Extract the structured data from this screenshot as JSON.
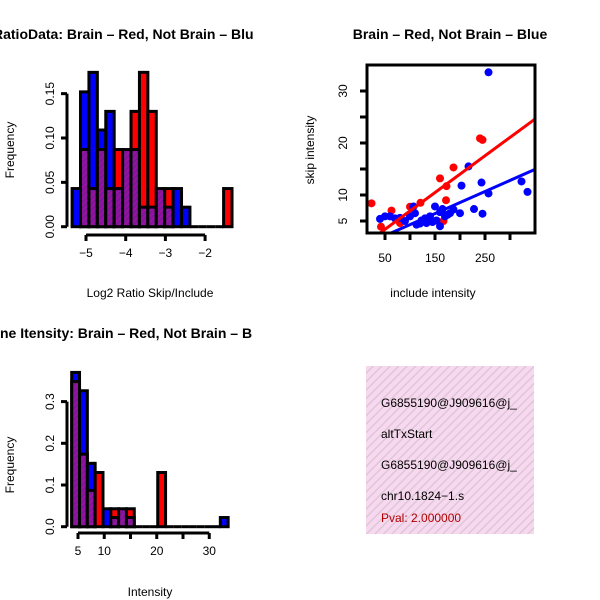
{
  "colors": {
    "red": "#ff0000",
    "blue": "#0000ff",
    "overlap": "#9a10a8",
    "note_bg": "#f8d8f0",
    "pval": "#b00000"
  },
  "chart_data": [
    {
      "type": "bar",
      "title": "RatioData: Brain – Red, Not Brain – Blu",
      "xlabel": "Log2 Ratio Skip/Include",
      "ylabel": "Frequency",
      "bin_start": -5.35,
      "bin_width": 0.212,
      "series": [
        {
          "name": "Not Brain",
          "color": "blue",
          "values": [
            0.043,
            0.152,
            0.174,
            0.109,
            0.13,
            0.043,
            0.087,
            0.087,
            0.022,
            0.022,
            0.043,
            0.022,
            0.043,
            0.022,
            0,
            0,
            0,
            0,
            0
          ]
        },
        {
          "name": "Brain",
          "color": "red",
          "values": [
            0,
            0.087,
            0.043,
            0.087,
            0.043,
            0.087,
            0.087,
            0.13,
            0.174,
            0.13,
            0.043,
            0.043,
            0,
            0,
            0,
            0,
            0,
            0,
            0.043
          ]
        }
      ],
      "xticks": [
        -5,
        -4,
        -3,
        -2
      ],
      "xtick_labels": [
        "−5",
        "−4",
        "−3",
        "−2"
      ],
      "yticks": [
        0,
        0.05,
        0.1,
        0.15
      ],
      "ytick_labels": [
        "0.00",
        "0.05",
        "0.10",
        "0.15"
      ],
      "ylim": [
        0,
        0.174
      ]
    },
    {
      "type": "scatter",
      "title": "Brain – Red, Not Brain – Blue",
      "xlabel": "include intensity",
      "ylabel": "skip intensity",
      "xlim": [
        14,
        350
      ],
      "ylim": [
        2.7,
        35
      ],
      "xticks": [
        50,
        100,
        150,
        200,
        250,
        300
      ],
      "xtick_labels": [
        "50",
        "",
        "150",
        "",
        "250",
        ""
      ],
      "yticks": [
        5,
        10,
        15,
        20,
        25,
        30
      ],
      "ytick_labels": [
        "5",
        "10",
        "",
        "20",
        "",
        "30"
      ],
      "series": [
        {
          "name": "Brain",
          "color": "red",
          "points": [
            [
              23,
              8.4
            ],
            [
              42,
              3.9
            ],
            [
              63,
              7.0
            ],
            [
              100,
              7.75
            ],
            [
              121,
              8.5
            ],
            [
              160,
              13.2
            ],
            [
              173,
              11.7
            ],
            [
              187,
              15.3
            ],
            [
              172,
              9.0
            ],
            [
              240,
              20.9
            ],
            [
              245,
              20.6
            ],
            [
              167,
              5.0
            ],
            [
              80,
              4.6
            ]
          ],
          "fit": {
            "intercept": -0.14,
            "slope": 0.0707
          }
        },
        {
          "name": "Not Brain",
          "color": "blue",
          "points": [
            [
              257,
              33.6
            ],
            [
              217,
              15.5
            ],
            [
              203,
              11.8
            ],
            [
              243,
              12.4
            ],
            [
              257,
              10.3
            ],
            [
              323,
              12.6
            ],
            [
              335,
              10.6
            ],
            [
              228,
              7.3
            ],
            [
              245,
              6.4
            ],
            [
              200,
              6.5
            ],
            [
              180,
              6.5
            ],
            [
              150,
              7.8
            ],
            [
              160,
              6.7
            ],
            [
              153,
              5.1
            ],
            [
              133,
              4.6
            ],
            [
              113,
              4.3
            ],
            [
              107,
              7.8
            ],
            [
              100,
              5.9
            ],
            [
              80,
              5.6
            ],
            [
              60,
              5.9
            ],
            [
              40,
              5.4
            ],
            [
              50,
              5.9
            ],
            [
              160,
              4.0
            ],
            [
              123,
              5.1
            ],
            [
              140,
              5.9
            ],
            [
              170,
              5.9
            ],
            [
              187,
              7.2
            ],
            [
              90,
              5.0
            ],
            [
              110,
              6.5
            ],
            [
              130,
              5.5
            ],
            [
              145,
              4.8
            ],
            [
              165,
              7.3
            ],
            [
              175,
              6.2
            ],
            [
              120,
              4.5
            ],
            [
              70,
              5.5
            ]
          ],
          "fit": {
            "intercept": 0.05,
            "slope": 0.0425
          }
        }
      ]
    },
    {
      "type": "bar",
      "title": "ne Itensity: Brain – Red, Not Brain – B",
      "xlabel": "Intensity",
      "ylabel": "Frequency",
      "bin_start": 3.8,
      "bin_width": 1.49,
      "series": [
        {
          "name": "Not Brain",
          "color": "blue",
          "values": [
            0.37,
            0.326,
            0.152,
            0,
            0.043,
            0.022,
            0.043,
            0.022,
            0,
            0,
            0,
            0,
            0,
            0,
            0,
            0,
            0,
            0,
            0,
            0.022
          ]
        },
        {
          "name": "Brain",
          "color": "red",
          "values": [
            0.348,
            0.174,
            0.087,
            0.13,
            0,
            0.043,
            0.043,
            0.043,
            0,
            0,
            0,
            0.13,
            0,
            0,
            0,
            0,
            0,
            0,
            0,
            0
          ]
        }
      ],
      "xticks": [
        5,
        10,
        15,
        20,
        25,
        30
      ],
      "xtick_labels": [
        "5",
        "10",
        "",
        "20",
        "",
        "30"
      ],
      "yticks": [
        0,
        0.1,
        0.2,
        0.3
      ],
      "ytick_labels": [
        "0.0",
        "0.1",
        "0.2",
        "0.3"
      ],
      "ylim": [
        0,
        0.37
      ]
    }
  ],
  "info_panel": {
    "lines": [
      "G6855190@J909616@j_",
      "altTxStart",
      "G6855190@J909616@j_",
      "chr10.1824−1.s"
    ],
    "pval": "Pval: 2.000000"
  }
}
